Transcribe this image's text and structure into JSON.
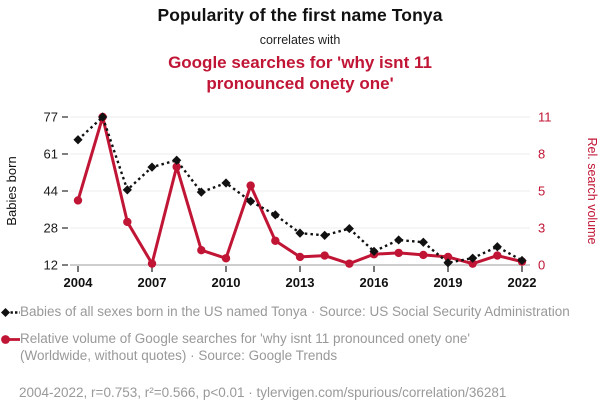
{
  "header": {
    "title": "Popularity of the first name Tonya",
    "connector": "correlates with",
    "subtitle": "Google searches for 'why isnt 11 pronounced onety one'"
  },
  "chart_data": {
    "type": "line",
    "title": "Popularity of the first name Tonya",
    "subtitle": "Google searches for 'why isnt 11 pronounced onety one'",
    "x": [
      2004,
      2005,
      2006,
      2007,
      2008,
      2009,
      2010,
      2011,
      2012,
      2013,
      2014,
      2015,
      2016,
      2017,
      2018,
      2019,
      2020,
      2021,
      2022
    ],
    "x_ticks": [
      2004,
      2007,
      2010,
      2013,
      2016,
      2019,
      2022
    ],
    "grid": true,
    "legend_position": "bottom",
    "left_axis": {
      "label": "Babies born",
      "ticks": [
        12,
        28,
        44,
        61,
        77
      ],
      "range": [
        12,
        77
      ],
      "color": "#1a1a1a"
    },
    "right_axis": {
      "label": "Rel. search volume",
      "ticks": [
        0,
        3,
        5,
        8,
        11
      ],
      "range": [
        0,
        11
      ],
      "color": "#c11535"
    },
    "series": [
      {
        "name": "Babies of all sexes born in the US named Tonya",
        "source": "US Social Security Administration",
        "axis": "left",
        "color": "#111111",
        "line_style": "dotted",
        "marker": "diamond",
        "values": [
          67,
          77,
          45,
          55,
          58,
          44,
          48,
          40,
          34,
          26,
          25,
          28,
          18,
          23,
          22,
          13,
          15,
          20,
          14
        ]
      },
      {
        "name": "Relative volume of Google searches for 'why isnt 11 pronounced onety one'",
        "source": "Google Trends",
        "axis": "right",
        "color": "#c11535",
        "line_style": "solid",
        "marker": "circle",
        "values": [
          4.8,
          11,
          3.2,
          0.1,
          7.3,
          1.1,
          0.5,
          5.9,
          1.8,
          0.6,
          0.7,
          0.1,
          0.8,
          0.9,
          0.75,
          0.6,
          0.1,
          0.7,
          0.25
        ]
      }
    ]
  },
  "legend": {
    "entries": [
      {
        "text": "Babies of all sexes born in the US named Tonya · Source: US Social Security Administration"
      },
      {
        "text": "Relative volume of Google searches for 'why isnt 11 pronounced onety one' (Worldwide, without quotes) · Source: Google Trends"
      }
    ]
  },
  "footer": {
    "text": "2004-2022, r=0.753, r²=0.566, p<0.01 · tylervigen.com/spurious/correlation/36281"
  },
  "colors": {
    "accent_red": "#c11535",
    "series_black": "#111111",
    "legend_gray": "#999999",
    "gridline": "#ececec"
  }
}
